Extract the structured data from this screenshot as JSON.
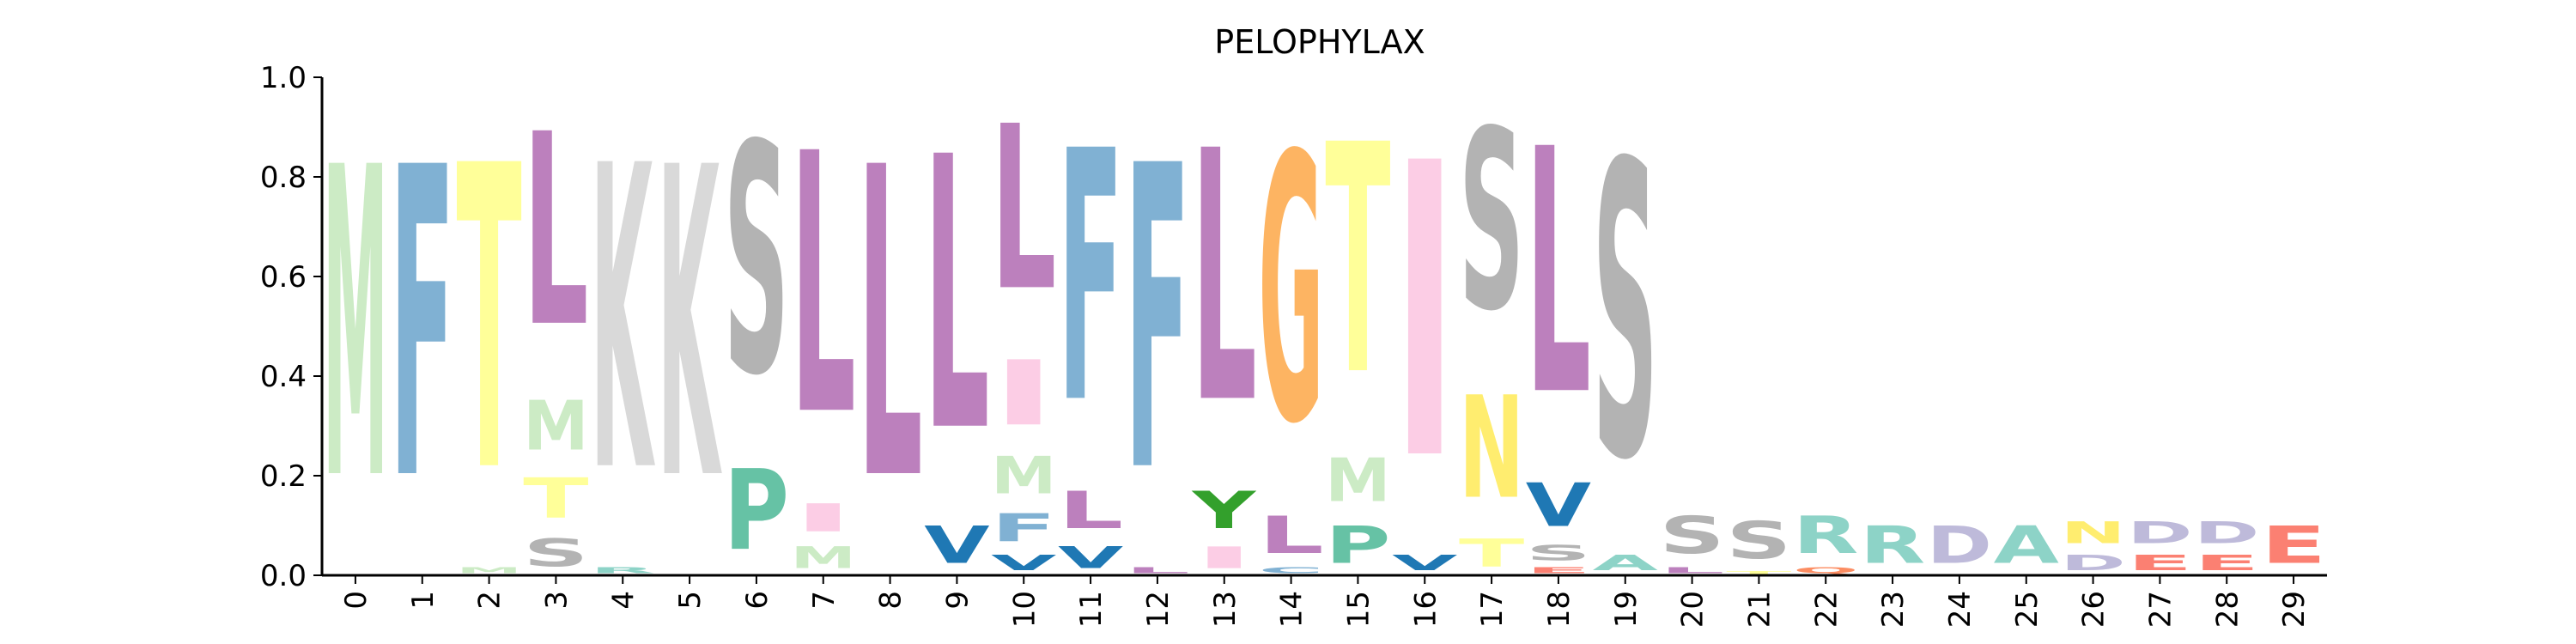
{
  "chart_data": {
    "type": "sequence-logo",
    "title": "PELOPHYLAX",
    "ylim": [
      0,
      1
    ],
    "yticks": [
      "0.0",
      "0.2",
      "0.4",
      "0.6",
      "0.8",
      "1.0"
    ],
    "xticks": [
      "0",
      "1",
      "2",
      "3",
      "4",
      "5",
      "6",
      "7",
      "8",
      "9",
      "10",
      "11",
      "12",
      "13",
      "14",
      "15",
      "16",
      "17",
      "18",
      "19",
      "20",
      "21",
      "22",
      "23",
      "24",
      "25",
      "26",
      "27",
      "28",
      "29"
    ],
    "grid": false,
    "legend": "none",
    "colors": {
      "M": "#ccebc5",
      "F": "#80b1d3",
      "T": "#ffff99",
      "L": "#bc80bd",
      "K": "#d9d9d9",
      "S": "#b3b3b3",
      "P": "#66c2a5",
      "I": "#fccde5",
      "V": "#1f78b4",
      "Y": "#33a02c",
      "G": "#fdb462",
      "N": "#ffed6f",
      "A": "#8dd3c7",
      "R": "#8dd3c7",
      "D": "#bebada",
      "E": "#fb8072",
      "Q": "#fc8d62",
      "C": "#80b1d3"
    },
    "positions": [
      {
        "x": 0,
        "letters": [
          {
            "aa": "M",
            "h": 1.0
          }
        ]
      },
      {
        "x": 1,
        "letters": [
          {
            "aa": "F",
            "h": 1.0
          }
        ]
      },
      {
        "x": 2,
        "letters": [
          {
            "aa": "M",
            "h": 0.02
          },
          {
            "aa": "T",
            "h": 0.98
          }
        ]
      },
      {
        "x": 3,
        "letters": [
          {
            "aa": "S",
            "h": 0.09
          },
          {
            "aa": "T",
            "h": 0.13
          },
          {
            "aa": "M",
            "h": 0.16
          },
          {
            "aa": "L",
            "h": 0.62
          }
        ]
      },
      {
        "x": 4,
        "letters": [
          {
            "aa": "R",
            "h": 0.02
          },
          {
            "aa": "K",
            "h": 0.98
          }
        ]
      },
      {
        "x": 5,
        "letters": [
          {
            "aa": "K",
            "h": 1.0
          }
        ]
      },
      {
        "x": 6,
        "letters": [
          {
            "aa": "P",
            "h": 0.26
          },
          {
            "aa": "S",
            "h": 0.74
          }
        ]
      },
      {
        "x": 7,
        "letters": [
          {
            "aa": "M",
            "h": 0.07
          },
          {
            "aa": "I",
            "h": 0.09
          },
          {
            "aa": "L",
            "h": 0.84
          }
        ]
      },
      {
        "x": 8,
        "letters": [
          {
            "aa": "L",
            "h": 1.0
          }
        ]
      },
      {
        "x": 9,
        "letters": [
          {
            "aa": "V",
            "h": 0.12
          },
          {
            "aa": "L",
            "h": 0.88
          }
        ]
      },
      {
        "x": 10,
        "letters": [
          {
            "aa": "V",
            "h": 0.05
          },
          {
            "aa": "F",
            "h": 0.09
          },
          {
            "aa": "M",
            "h": 0.12
          },
          {
            "aa": "I",
            "h": 0.21
          },
          {
            "aa": "L",
            "h": 0.53
          }
        ]
      },
      {
        "x": 11,
        "letters": [
          {
            "aa": "V",
            "h": 0.07
          },
          {
            "aa": "L",
            "h": 0.12
          },
          {
            "aa": "F",
            "h": 0.81
          }
        ]
      },
      {
        "x": 12,
        "letters": [
          {
            "aa": "L",
            "h": 0.02
          },
          {
            "aa": "F",
            "h": 0.98
          }
        ]
      },
      {
        "x": 13,
        "letters": [
          {
            "aa": "I",
            "h": 0.07
          },
          {
            "aa": "Y",
            "h": 0.12
          },
          {
            "aa": "L",
            "h": 0.81
          }
        ]
      },
      {
        "x": 14,
        "letters": [
          {
            "aa": "C",
            "h": 0.02
          },
          {
            "aa": "L",
            "h": 0.12
          },
          {
            "aa": "G",
            "h": 0.86
          }
        ]
      },
      {
        "x": 15,
        "letters": [
          {
            "aa": "P",
            "h": 0.12
          },
          {
            "aa": "M",
            "h": 0.14
          },
          {
            "aa": "T",
            "h": 0.74
          }
        ]
      },
      {
        "x": 16,
        "letters": [
          {
            "aa": "V",
            "h": 0.05
          },
          {
            "aa": "I",
            "h": 0.95
          }
        ]
      },
      {
        "x": 17,
        "letters": [
          {
            "aa": "T",
            "h": 0.09
          },
          {
            "aa": "N",
            "h": 0.33
          },
          {
            "aa": "S",
            "h": 0.58
          }
        ]
      },
      {
        "x": 18,
        "letters": [
          {
            "aa": "E",
            "h": 0.02
          },
          {
            "aa": "S",
            "h": 0.05
          },
          {
            "aa": "V",
            "h": 0.14
          },
          {
            "aa": "L",
            "h": 0.79
          }
        ]
      },
      {
        "x": 19,
        "letters": [
          {
            "aa": "A",
            "h": 0.05
          },
          {
            "aa": "S",
            "h": 0.95
          }
        ]
      },
      {
        "x": 20,
        "letters": [
          {
            "aa": "L",
            "h": 0.02
          },
          {
            "aa": "S",
            "h": 0.12
          }
        ]
      },
      {
        "x": 21,
        "letters": [
          {
            "aa": "T",
            "h": 0.01
          },
          {
            "aa": "S",
            "h": 0.12
          }
        ]
      },
      {
        "x": 22,
        "letters": [
          {
            "aa": "Q",
            "h": 0.02
          },
          {
            "aa": "R",
            "h": 0.12
          }
        ]
      },
      {
        "x": 23,
        "letters": [
          {
            "aa": "R",
            "h": 0.12
          }
        ]
      },
      {
        "x": 24,
        "letters": [
          {
            "aa": "D",
            "h": 0.12
          }
        ]
      },
      {
        "x": 25,
        "letters": [
          {
            "aa": "A",
            "h": 0.12
          }
        ]
      },
      {
        "x": 26,
        "letters": [
          {
            "aa": "D",
            "h": 0.05
          },
          {
            "aa": "N",
            "h": 0.07
          }
        ]
      },
      {
        "x": 27,
        "letters": [
          {
            "aa": "E",
            "h": 0.05
          },
          {
            "aa": "D",
            "h": 0.07
          }
        ]
      },
      {
        "x": 28,
        "letters": [
          {
            "aa": "E",
            "h": 0.05
          },
          {
            "aa": "D",
            "h": 0.07
          }
        ]
      },
      {
        "x": 29,
        "letters": [
          {
            "aa": "E",
            "h": 0.12
          }
        ]
      }
    ]
  }
}
